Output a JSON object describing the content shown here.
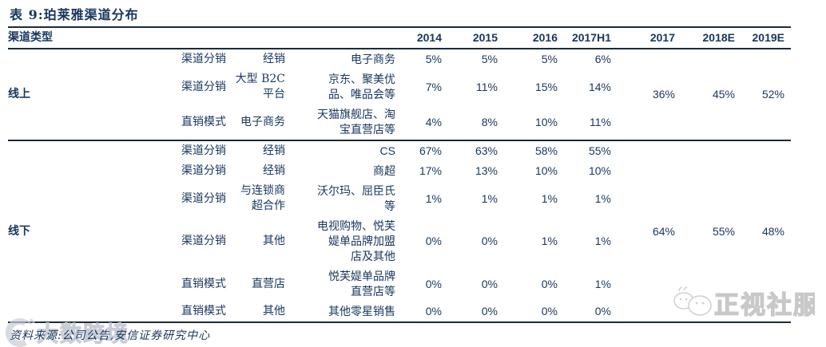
{
  "title": "表 9:珀莱雅渠道分布",
  "header": {
    "channel_type": "渠道类型",
    "years": [
      "2014",
      "2015",
      "2016",
      "2017H1",
      "2017",
      "2018E",
      "2019E"
    ]
  },
  "groups": [
    {
      "label": "线上",
      "merged_values": [
        "36%",
        "45%",
        "52%"
      ],
      "rows": [
        {
          "mode": "渠道分销",
          "channel": "经销",
          "desc": "电子商务",
          "values": [
            "5%",
            "5%",
            "5%",
            "6%"
          ]
        },
        {
          "mode": "渠道分销",
          "channel": "大型 B2C\n平台",
          "desc": "京东、聚美优\n品、唯品会等",
          "values": [
            "7%",
            "11%",
            "15%",
            "14%"
          ]
        },
        {
          "mode": "直销模式",
          "channel": "电子商务",
          "desc": "天猫旗舰店、淘\n宝直营店等",
          "values": [
            "4%",
            "8%",
            "10%",
            "11%"
          ]
        }
      ]
    },
    {
      "label": "线下",
      "merged_values": [
        "64%",
        "55%",
        "48%"
      ],
      "rows": [
        {
          "mode": "渠道分销",
          "channel": "经销",
          "desc": "CS",
          "values": [
            "67%",
            "63%",
            "58%",
            "55%"
          ]
        },
        {
          "mode": "渠道分销",
          "channel": "经销",
          "desc": "商超",
          "values": [
            "17%",
            "13%",
            "10%",
            "10%"
          ]
        },
        {
          "mode": "渠道分销",
          "channel": "与连锁商\n超合作",
          "desc": "沃尔玛、屈臣氏\n等",
          "values": [
            "1%",
            "1%",
            "1%",
            "1%"
          ]
        },
        {
          "mode": "渠道分销",
          "channel": "其他",
          "desc": "电视购物、悦芙\n媞单品牌加盟\n店及其他",
          "values": [
            "0%",
            "0%",
            "1%",
            "1%"
          ]
        },
        {
          "mode": "直销模式",
          "channel": "直营店",
          "desc": "悦芙媞单品牌\n直营店等",
          "values": [
            "0%",
            "0%",
            "0%",
            "1%"
          ]
        },
        {
          "mode": "直销模式",
          "channel": "其他",
          "desc": "其他零星销售",
          "values": [
            "0%",
            "0%",
            "0%",
            "0%"
          ]
        }
      ]
    }
  ],
  "source": "资料来源:公司公告,安信证券研究中心",
  "watermarks": {
    "bottom_left": "大数跨境",
    "bottom_right": "正视社服"
  },
  "colors": {
    "text": "#17365D",
    "line": "#1A2A3A",
    "watermark": "#C8CDD5"
  }
}
